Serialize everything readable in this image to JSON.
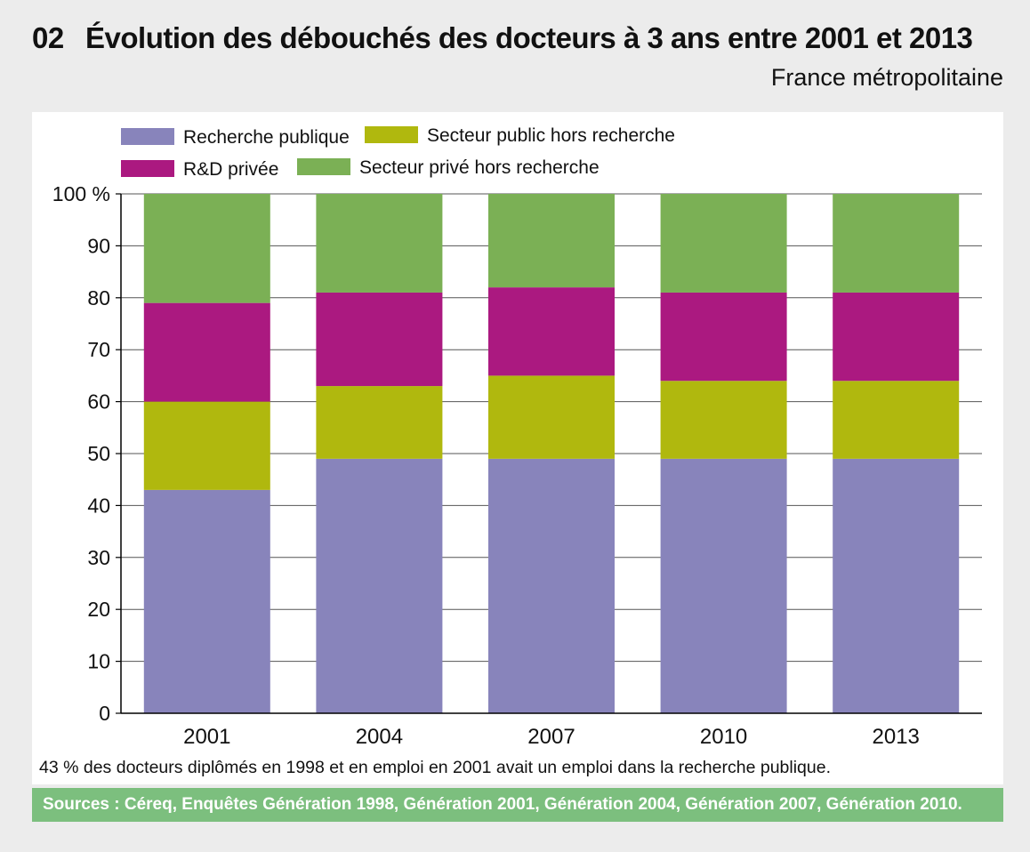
{
  "header": {
    "number": "02",
    "title": "Évolution des débouchés des docteurs à 3 ans entre 2001 et 2013",
    "subtitle": "France métropolitaine"
  },
  "chart_data": {
    "type": "bar",
    "stacked": true,
    "categories": [
      "2001",
      "2004",
      "2007",
      "2010",
      "2013"
    ],
    "series": [
      {
        "name": "Recherche publique",
        "color": "#8884bb",
        "values": [
          43,
          49,
          49,
          49,
          49
        ]
      },
      {
        "name": "Secteur public hors recherche",
        "color": "#b0b80e",
        "values": [
          17,
          14,
          16,
          15,
          15
        ]
      },
      {
        "name": "R&D privée",
        "color": "#ab1980",
        "values": [
          19,
          18,
          17,
          17,
          17
        ]
      },
      {
        "name": "Secteur privé hors recherche",
        "color": "#7bb055",
        "values": [
          21,
          19,
          18,
          19,
          19
        ]
      }
    ],
    "ylim": [
      0,
      100
    ],
    "yticks": [
      0,
      10,
      20,
      30,
      40,
      50,
      60,
      70,
      80,
      90,
      100
    ],
    "ytick_labels": [
      "0",
      "10",
      "20",
      "30",
      "40",
      "50",
      "60",
      "70",
      "80",
      "90",
      "100 %"
    ],
    "grid": true,
    "legend_placement": "top-left",
    "xlabel": "",
    "ylabel": ""
  },
  "footer": {
    "note": "43 % des docteurs diplômés en 1998 et en emploi en 2001 avait un emploi dans la recherche publique.",
    "sources": "Sources : Céreq, Enquêtes Génération 1998, Génération 2001, Génération 2004, Génération 2007, Génération 2010."
  }
}
